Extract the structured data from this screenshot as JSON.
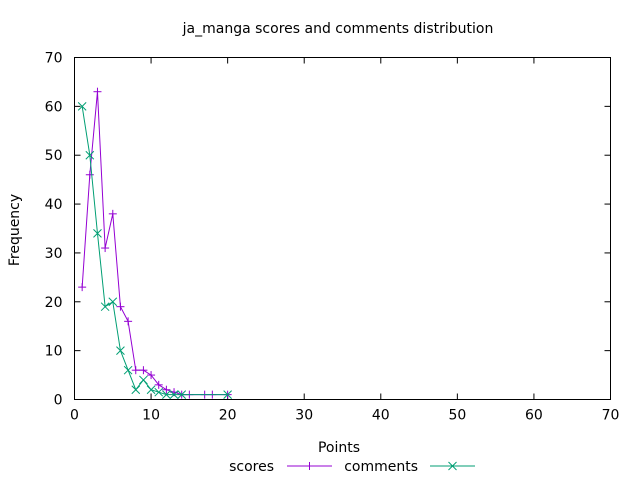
{
  "chart_data": {
    "type": "line",
    "title": "ja_manga scores and comments distribution",
    "xlabel": "Points",
    "ylabel": "Frequency",
    "xlim": [
      0,
      70
    ],
    "ylim": [
      0,
      70
    ],
    "xticks": [
      0,
      10,
      20,
      30,
      40,
      50,
      60,
      70
    ],
    "yticks": [
      0,
      10,
      20,
      30,
      40,
      50,
      60,
      70
    ],
    "grid": false,
    "legend_position": "bottom",
    "series": [
      {
        "name": "scores",
        "color": "#9400d3",
        "marker": "plus",
        "x": [
          1,
          2,
          3,
          4,
          5,
          6,
          7,
          8,
          9,
          10,
          11,
          12,
          13,
          14,
          15,
          17,
          18,
          20
        ],
        "y": [
          23,
          46,
          63,
          31,
          38,
          19,
          16,
          6,
          6,
          5,
          3,
          2,
          1.5,
          1,
          1,
          1,
          1,
          1
        ]
      },
      {
        "name": "comments",
        "color": "#009e73",
        "marker": "cross",
        "x": [
          1,
          2,
          3,
          4,
          5,
          6,
          7,
          8,
          9,
          10,
          11,
          12,
          13,
          14,
          20
        ],
        "y": [
          60,
          50,
          34,
          19,
          20,
          10,
          6,
          2,
          4,
          2,
          1.5,
          1,
          1,
          1,
          1
        ]
      }
    ]
  }
}
